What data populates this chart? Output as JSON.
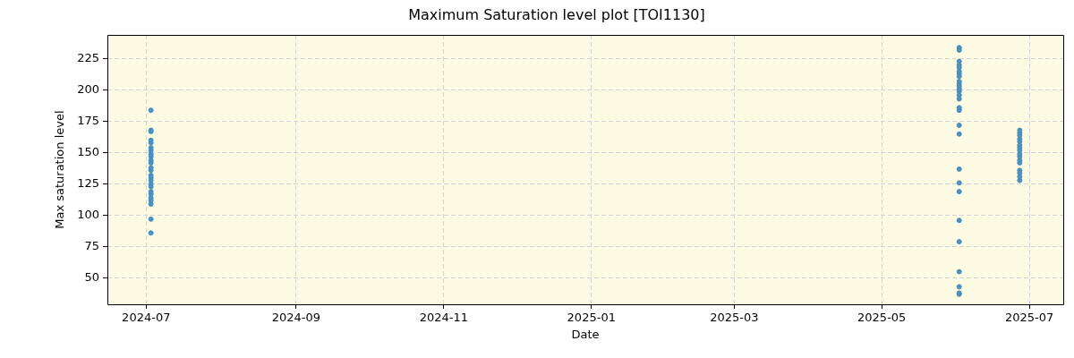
{
  "chart_data": {
    "type": "scatter",
    "title": "Maximum Saturation level plot [TOI1130]",
    "xlabel": "Date",
    "ylabel": "Max saturation level",
    "x": [
      "2024-07-03",
      "2024-07-03",
      "2024-07-03",
      "2024-07-03",
      "2024-07-03",
      "2024-07-03",
      "2024-07-03",
      "2024-07-03",
      "2024-07-03",
      "2024-07-03",
      "2024-07-03",
      "2024-07-03",
      "2024-07-03",
      "2024-07-03",
      "2024-07-03",
      "2024-07-03",
      "2024-07-03",
      "2024-07-03",
      "2024-07-03",
      "2024-07-03",
      "2024-07-03",
      "2024-07-03",
      "2024-07-03",
      "2024-07-03",
      "2024-07-03",
      "2025-06-02",
      "2025-06-02",
      "2025-06-02",
      "2025-06-02",
      "2025-06-02",
      "2025-06-02",
      "2025-06-02",
      "2025-06-02",
      "2025-06-02",
      "2025-06-02",
      "2025-06-02",
      "2025-06-02",
      "2025-06-02",
      "2025-06-02",
      "2025-06-02",
      "2025-06-02",
      "2025-06-02",
      "2025-06-02",
      "2025-06-02",
      "2025-06-02",
      "2025-06-02",
      "2025-06-02",
      "2025-06-02",
      "2025-06-02",
      "2025-06-02",
      "2025-06-02",
      "2025-06-02",
      "2025-06-02",
      "2025-06-27",
      "2025-06-27",
      "2025-06-27",
      "2025-06-27",
      "2025-06-27",
      "2025-06-27",
      "2025-06-27",
      "2025-06-27",
      "2025-06-27",
      "2025-06-27",
      "2025-06-27",
      "2025-06-27",
      "2025-06-27",
      "2025-06-27",
      "2025-06-27",
      "2025-06-27"
    ],
    "values": [
      184,
      168,
      167,
      160,
      158,
      154,
      152,
      149,
      147,
      144,
      142,
      138,
      136,
      132,
      130,
      128,
      125,
      123,
      119,
      117,
      114,
      112,
      109,
      97,
      86,
      234,
      232,
      223,
      220,
      218,
      215,
      213,
      211,
      207,
      205,
      203,
      201,
      199,
      196,
      193,
      186,
      184,
      172,
      165,
      137,
      126,
      119,
      96,
      79,
      55,
      43,
      38,
      37,
      168,
      166,
      164,
      161,
      159,
      156,
      154,
      152,
      149,
      147,
      144,
      142,
      136,
      134,
      131,
      128
    ],
    "color": "#4a90c0",
    "marker": "circle",
    "xlim": [
      "2024-06-15",
      "2025-07-15"
    ],
    "xticks": [
      "2024-07",
      "2024-09",
      "2024-11",
      "2025-01",
      "2025-03",
      "2025-05",
      "2025-07"
    ],
    "ylim": [
      29,
      244
    ],
    "yticks": [
      50,
      75,
      100,
      125,
      150,
      175,
      200,
      225
    ],
    "grid": true,
    "legend": false
  }
}
